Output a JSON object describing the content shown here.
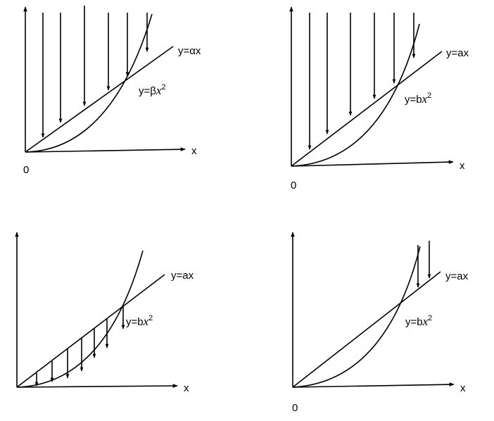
{
  "panels": [
    {
      "id": "top-left",
      "line_label": "y=αx",
      "curve_label_prefix": "y=β",
      "curve_label_var": "x",
      "curve_label_exp": "2",
      "x_label": "x",
      "origin_label": "0"
    },
    {
      "id": "top-right",
      "line_label": "y=ax",
      "curve_label_prefix": "y=b",
      "curve_label_var": "x",
      "curve_label_exp": "2",
      "x_label": "x",
      "origin_label": "0"
    },
    {
      "id": "bottom-left",
      "line_label": "y=ax",
      "curve_label_prefix": "y=b",
      "curve_label_var": "x",
      "curve_label_exp": "2",
      "x_label": "x",
      "origin_label": ""
    },
    {
      "id": "bottom-right",
      "line_label": "y=ax",
      "curve_label_prefix": "y=b",
      "curve_label_var": "x",
      "curve_label_exp": "2",
      "x_label": "x",
      "origin_label": "0"
    }
  ],
  "colors": {
    "stroke": "#000000",
    "background": "#ffffff"
  }
}
